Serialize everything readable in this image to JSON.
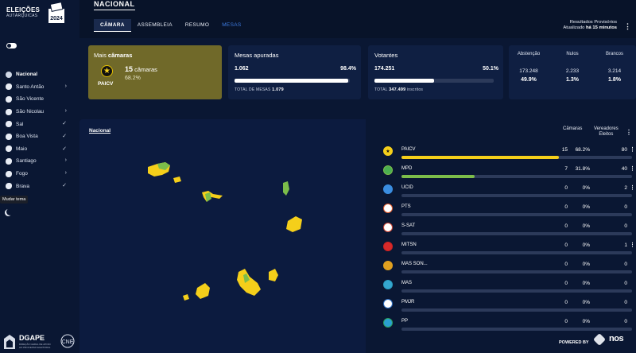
{
  "brand": {
    "title": "ELEIÇÕES",
    "subtitle": "AUTÁRQUICAS",
    "year": "2024"
  },
  "header": {
    "title": "NACIONAL",
    "tabs": [
      {
        "label": "CÂMARA",
        "active": true
      },
      {
        "label": "ASSEMBLEIA"
      },
      {
        "label": "RESUMO"
      },
      {
        "label": "MESAS"
      }
    ],
    "results_line1": "Resultados Provisórios",
    "results_prefix": "Atualizado ",
    "results_time": "há 15 minutos"
  },
  "sidebar": {
    "items": [
      {
        "label": "Nacional",
        "indicator": ""
      },
      {
        "label": "Santo Antão",
        "indicator": "›"
      },
      {
        "label": "São Vicente",
        "indicator": ""
      },
      {
        "label": "São Nicolau",
        "indicator": "›"
      },
      {
        "label": "Sal",
        "indicator": "✓"
      },
      {
        "label": "Boa Vista",
        "indicator": "✓"
      },
      {
        "label": "Maio",
        "indicator": "✓"
      },
      {
        "label": "Santiago",
        "indicator": "›"
      },
      {
        "label": "Fogo",
        "indicator": "›"
      },
      {
        "label": "Brava",
        "indicator": "✓"
      }
    ],
    "tooltip": "Mudar tema"
  },
  "footer": {
    "dgape": "DGAPE",
    "dgape_sub": "DIREÇÃO GERAL DE APOIO AO PROCESSO ELEITORAL",
    "cne": "CNE"
  },
  "cards": {
    "mais_camaras": {
      "title_prefix": "Mais ",
      "title_bold": "câmaras",
      "party": "PAICV",
      "count": "15",
      "count_label": "câmaras",
      "pct": "68.2%"
    },
    "mesas": {
      "title": "Mesas apuradas",
      "value": "1.062",
      "pct": "98.4%",
      "fill": 0.984,
      "total_label": "TOTAL DE MESAS",
      "total": "1.079"
    },
    "votantes": {
      "title": "Votantes",
      "value": "174.251",
      "pct": "50.1%",
      "fill": 0.501,
      "total": "347.499",
      "total_label": "inscritos"
    },
    "abstencao": {
      "cols": [
        {
          "label": "Abstenção",
          "value": "173.248",
          "pct": "49.9%"
        },
        {
          "label": "Nulos",
          "value": "2.233",
          "pct": "1.3%"
        },
        {
          "label": "Brancos",
          "value": "3.214",
          "pct": "1.8%"
        }
      ]
    }
  },
  "map": {
    "title": "Nacional"
  },
  "results": {
    "col_camaras": "Câmaras",
    "col_vereadores_1": "Vereadores",
    "col_vereadores_2": "Eleitos",
    "parties": [
      {
        "name": "PAICV",
        "camaras": "15",
        "pct": "68.2%",
        "vereadores": "80",
        "fill": 0.682,
        "color": "#f5cf1a",
        "logo_bg": "#f5cf1a",
        "kebab": true
      },
      {
        "name": "MPD",
        "camaras": "7",
        "pct": "31.8%",
        "vereadores": "40",
        "fill": 0.318,
        "color": "#7cbd4a",
        "logo_bg": "#4caf50",
        "kebab": true
      },
      {
        "name": "UCID",
        "camaras": "0",
        "pct": "0%",
        "vereadores": "2",
        "fill": 0,
        "color": "#3a8de0",
        "logo_bg": "#3a8de0",
        "kebab": true
      },
      {
        "name": "PTS",
        "camaras": "0",
        "pct": "0%",
        "vereadores": "0",
        "fill": 0,
        "color": "#e05a2b",
        "logo_bg": "#ffffff",
        "kebab": false
      },
      {
        "name": "S-SAT",
        "camaras": "0",
        "pct": "0%",
        "vereadores": "0",
        "fill": 0,
        "color": "#c43",
        "logo_bg": "#ffffff",
        "kebab": false
      },
      {
        "name": "MITSN",
        "camaras": "0",
        "pct": "0%",
        "vereadores": "1",
        "fill": 0,
        "color": "#c22",
        "logo_bg": "#d62a2a",
        "kebab": true
      },
      {
        "name": "MAS SON...",
        "camaras": "0",
        "pct": "0%",
        "vereadores": "0",
        "fill": 0,
        "color": "#e0a020",
        "logo_bg": "#e0a020",
        "kebab": false
      },
      {
        "name": "MAS",
        "camaras": "0",
        "pct": "0%",
        "vereadores": "0",
        "fill": 0,
        "color": "#2a9cc0",
        "logo_bg": "#35a7d0",
        "kebab": false
      },
      {
        "name": "PMJR",
        "camaras": "0",
        "pct": "0%",
        "vereadores": "0",
        "fill": 0,
        "color": "#2a6cc0",
        "logo_bg": "#ffffff",
        "kebab": false
      },
      {
        "name": "PP",
        "camaras": "0",
        "pct": "0%",
        "vereadores": "0",
        "fill": 0,
        "color": "#2aa060",
        "logo_bg": "#2aa0d0",
        "kebab": false
      }
    ],
    "powered_by": "POWERED BY",
    "powered_brand": "nos"
  },
  "colors": {
    "paicv": "#f5cf1a",
    "mpd": "#7cbd4a",
    "background": "#0a1733",
    "panel": "#0f1f42"
  }
}
